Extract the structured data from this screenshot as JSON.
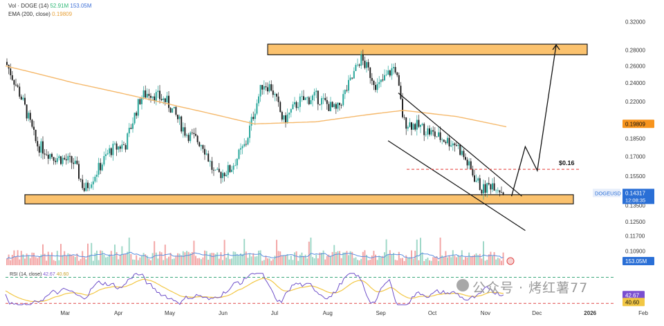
{
  "header": {
    "vol_label": "Vol · DOGE (14)",
    "vol_value1": "52.91M",
    "vol_value2": "153.05M",
    "ema_label": "EMA (200, close)",
    "ema_value": "0.19809"
  },
  "rsi_header": {
    "label": "RSI (14, close)",
    "value1": "42.67",
    "value2": "40.60"
  },
  "watermark": "公众号 · 烤红薯77",
  "colors": {
    "up": "#26a69a",
    "down": "#222222",
    "ema": "#f5b86a",
    "zone_fill": "#fbc26e",
    "zone_stroke": "#1a1a1a",
    "rsi": "#6e4fc9",
    "rsi_ma": "#f2c744",
    "vol_ma": "#5b8fe0",
    "target_line": "#e53935",
    "ema_badge": "#f7941d",
    "price_badge": "#2a6fd6",
    "rsi_badge": "#7a4fd0",
    "rsi_ma_badge": "#f2c744"
  },
  "chart_data": {
    "type": "candlestick",
    "symbol": "DOGEUSD",
    "x_labels": [
      "Mar",
      "Apr",
      "May",
      "Jun",
      "Jul",
      "Aug",
      "Sep",
      "Oct",
      "Nov",
      "Dec",
      "2026",
      "Feb"
    ],
    "y_ticks": [
      "0.32000",
      "0.28000",
      "0.26000",
      "0.24000",
      "0.22000",
      "0.18500",
      "0.17000",
      "0.15500",
      "0.13500",
      "0.12500",
      "0.11700",
      "0.10900"
    ],
    "ylim": [
      0.106,
      0.33
    ],
    "y_scale": "log",
    "price_close_path": [
      [
        "2025-02-20",
        0.265
      ],
      [
        "2025-03-01",
        0.225
      ],
      [
        "2025-03-10",
        0.18
      ],
      [
        "2025-03-20",
        0.17
      ],
      [
        "2025-04-01",
        0.165
      ],
      [
        "2025-04-07",
        0.145
      ],
      [
        "2025-04-15",
        0.16
      ],
      [
        "2025-04-22",
        0.175
      ],
      [
        "2025-05-01",
        0.18
      ],
      [
        "2025-05-10",
        0.225
      ],
      [
        "2025-05-15",
        0.23
      ],
      [
        "2025-05-25",
        0.22
      ],
      [
        "2025-06-05",
        0.19
      ],
      [
        "2025-06-15",
        0.18
      ],
      [
        "2025-06-22",
        0.155
      ],
      [
        "2025-07-01",
        0.16
      ],
      [
        "2025-07-10",
        0.18
      ],
      [
        "2025-07-20",
        0.24
      ],
      [
        "2025-07-25",
        0.235
      ],
      [
        "2025-08-01",
        0.2
      ],
      [
        "2025-08-10",
        0.22
      ],
      [
        "2025-08-20",
        0.225
      ],
      [
        "2025-09-01",
        0.21
      ],
      [
        "2025-09-10",
        0.245
      ],
      [
        "2025-09-15",
        0.27
      ],
      [
        "2025-09-25",
        0.235
      ],
      [
        "2025-10-01",
        0.25
      ],
      [
        "2025-10-05",
        0.26
      ],
      [
        "2025-10-10",
        0.2
      ],
      [
        "2025-10-20",
        0.195
      ],
      [
        "2025-11-01",
        0.185
      ],
      [
        "2025-11-10",
        0.18
      ],
      [
        "2025-11-20",
        0.155
      ],
      [
        "2025-11-25",
        0.145
      ],
      [
        "2025-12-01",
        0.15
      ],
      [
        "2025-12-08",
        0.143
      ]
    ],
    "ema200_path": [
      [
        "2025-02-20",
        0.26
      ],
      [
        "2025-04-01",
        0.24
      ],
      [
        "2025-06-01",
        0.215
      ],
      [
        "2025-07-15",
        0.198
      ],
      [
        "2025-08-20",
        0.2
      ],
      [
        "2025-09-20",
        0.207
      ],
      [
        "2025-10-10",
        0.211
      ],
      [
        "2025-11-10",
        0.205
      ],
      [
        "2025-12-10",
        0.195
      ]
    ],
    "ema_last": 0.19809,
    "last_price": 0.14317,
    "last_price_countdown": "12:08:35",
    "support_zone": [
      0.136,
      0.142
    ],
    "resistance_zone": [
      0.274,
      0.288
    ],
    "target_level": 0.16,
    "target_label": "$0.16",
    "channel_upper": [
      [
        "2025-10-07",
        0.229
      ],
      [
        "2025-12-18",
        0.141
      ]
    ],
    "channel_lower": [
      [
        "2025-10-01",
        0.183
      ],
      [
        "2025-12-20",
        0.12
      ]
    ],
    "projection_path": [
      [
        "2025-12-12",
        0.141
      ],
      [
        "2025-12-20",
        0.178
      ],
      [
        "2025-12-27",
        0.159
      ],
      [
        "2026-01-07",
        0.287
      ]
    ],
    "volume_last": "153.05M",
    "rsi_last": 42.67,
    "rsi_ma_last": 40.6
  }
}
